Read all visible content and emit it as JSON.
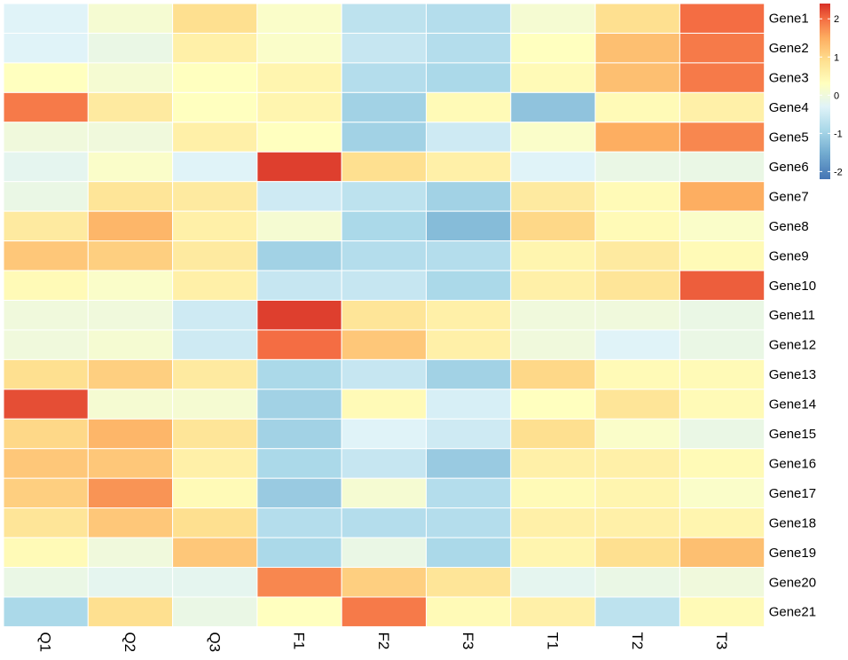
{
  "chart_data": {
    "type": "heatmap",
    "title": "",
    "columns": [
      "Q1",
      "Q2",
      "Q3",
      "F1",
      "F2",
      "F3",
      "T1",
      "T2",
      "T3"
    ],
    "rows": [
      "Gene1",
      "Gene2",
      "Gene3",
      "Gene4",
      "Gene5",
      "Gene6",
      "Gene7",
      "Gene8",
      "Gene9",
      "Gene10",
      "Gene11",
      "Gene12",
      "Gene13",
      "Gene14",
      "Gene15",
      "Gene16",
      "Gene17",
      "Gene18",
      "Gene19",
      "Gene20",
      "Gene21"
    ],
    "values": [
      [
        -0.3,
        0.1,
        0.9,
        0.2,
        -0.7,
        -0.8,
        0.1,
        0.9,
        2.0
      ],
      [
        -0.3,
        -0.1,
        0.6,
        0.2,
        -0.6,
        -0.8,
        0.3,
        1.3,
        1.9
      ],
      [
        0.3,
        0.1,
        0.3,
        0.5,
        -0.8,
        -0.9,
        0.4,
        1.3,
        1.9
      ],
      [
        1.9,
        0.7,
        0.3,
        0.5,
        -1.0,
        0.4,
        -1.2,
        0.4,
        0.6
      ],
      [
        0.0,
        0.0,
        0.6,
        0.3,
        -1.0,
        -0.5,
        0.2,
        1.5,
        1.8
      ],
      [
        -0.2,
        0.2,
        -0.3,
        2.3,
        0.9,
        0.6,
        -0.3,
        -0.1,
        -0.1
      ],
      [
        -0.1,
        0.8,
        0.7,
        -0.5,
        -0.7,
        -1.0,
        0.7,
        0.4,
        1.5
      ],
      [
        0.7,
        1.4,
        0.6,
        0.1,
        -0.9,
        -1.3,
        1.0,
        0.4,
        0.2
      ],
      [
        1.2,
        1.1,
        0.7,
        -1.0,
        -0.8,
        -0.8,
        0.5,
        0.7,
        0.4
      ],
      [
        0.4,
        0.2,
        0.6,
        -0.6,
        -0.6,
        -0.9,
        0.6,
        0.8,
        2.1
      ],
      [
        0.0,
        0.0,
        -0.5,
        2.3,
        0.8,
        0.6,
        0.0,
        0.0,
        -0.1
      ],
      [
        0.0,
        0.1,
        -0.5,
        2.0,
        1.2,
        0.6,
        0.0,
        -0.3,
        -0.1
      ],
      [
        0.9,
        1.1,
        0.7,
        -0.9,
        -0.6,
        -1.0,
        1.0,
        0.4,
        0.4
      ],
      [
        2.2,
        0.1,
        0.1,
        -1.0,
        0.4,
        -0.4,
        0.3,
        0.8,
        0.4
      ],
      [
        1.0,
        1.4,
        0.8,
        -1.0,
        -0.3,
        -0.5,
        0.9,
        0.2,
        -0.1
      ],
      [
        1.2,
        1.2,
        0.6,
        -0.9,
        -0.6,
        -1.1,
        0.6,
        0.6,
        0.4
      ],
      [
        1.1,
        1.7,
        0.4,
        -1.1,
        0.1,
        -0.8,
        0.4,
        0.5,
        0.2
      ],
      [
        0.8,
        1.2,
        0.9,
        -0.8,
        -0.8,
        -0.8,
        0.6,
        0.6,
        0.5
      ],
      [
        0.4,
        0.0,
        1.2,
        -0.9,
        -0.1,
        -0.9,
        0.5,
        0.9,
        1.3
      ],
      [
        -0.1,
        -0.2,
        -0.2,
        1.8,
        1.1,
        0.8,
        -0.2,
        -0.1,
        0.0
      ],
      [
        -0.9,
        0.9,
        -0.1,
        0.3,
        1.9,
        0.4,
        0.6,
        -0.7,
        0.4
      ]
    ],
    "color_scale": {
      "stops": [
        {
          "value": -2.2,
          "color": "#4575B4"
        },
        {
          "value": -1.5,
          "color": "#74ADD1"
        },
        {
          "value": -0.9,
          "color": "#ABD9E9"
        },
        {
          "value": -0.3,
          "color": "#E0F3F8"
        },
        {
          "value": 0.3,
          "color": "#FFFFBF"
        },
        {
          "value": 0.9,
          "color": "#FEE090"
        },
        {
          "value": 1.5,
          "color": "#FDAE61"
        },
        {
          "value": 2.0,
          "color": "#F46D43"
        },
        {
          "value": 2.4,
          "color": "#D73027"
        }
      ],
      "legend_ticks": [
        2,
        1,
        0,
        -1,
        -2
      ],
      "legend_placement": "top-right"
    },
    "gridline_color": "#ffffff"
  }
}
